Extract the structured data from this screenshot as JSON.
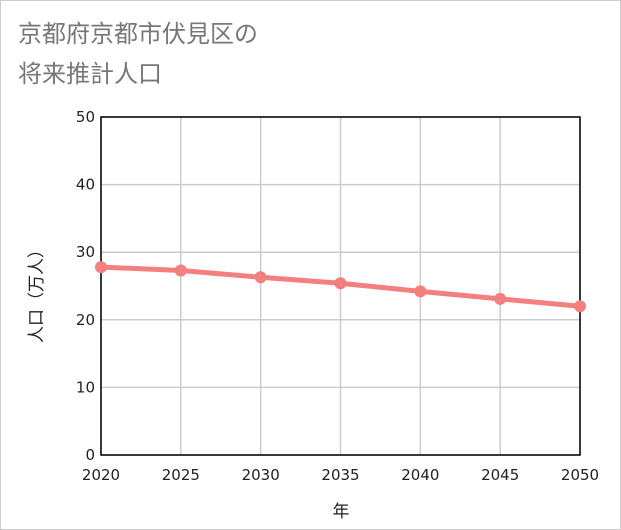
{
  "chart_data": {
    "type": "line",
    "title_line1": "京都府京都市伏見区の",
    "title_line2": "将来推計人口",
    "xlabel": "年",
    "ylabel": "人口（万人）",
    "x": [
      2020,
      2025,
      2030,
      2035,
      2040,
      2045,
      2050
    ],
    "xlim": [
      2020,
      2050
    ],
    "ylim": [
      0,
      50
    ],
    "yticks": [
      0,
      10,
      20,
      30,
      40,
      50
    ],
    "grid": true,
    "series": [
      {
        "name": "人口",
        "color": "#f47f7f",
        "values": [
          27.8,
          27.3,
          26.3,
          25.4,
          24.2,
          23.1,
          22.0
        ]
      }
    ]
  }
}
